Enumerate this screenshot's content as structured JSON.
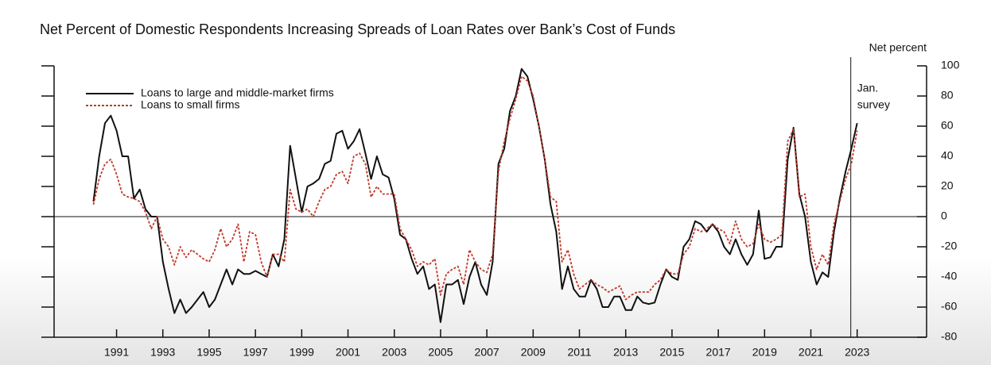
{
  "chart_data": {
    "type": "line",
    "title": "Net Percent of Domestic Respondents Increasing Spreads of Loan Rates over Bank’s Cost of Funds",
    "y_axis_label": "Net percent",
    "annotation": [
      "Jan.",
      "survey"
    ],
    "xlim": [
      1988.3,
      2026.0
    ],
    "xticks": [
      1991,
      1993,
      1995,
      1997,
      1999,
      2001,
      2003,
      2005,
      2007,
      2009,
      2011,
      2013,
      2015,
      2017,
      2019,
      2021,
      2023
    ],
    "ylim": [
      -80,
      100
    ],
    "yticks": [
      -80,
      -60,
      -40,
      -20,
      0,
      20,
      40,
      60,
      80,
      100
    ],
    "legend": "top-left",
    "x": [
      1990.0,
      1990.25,
      1990.5,
      1990.75,
      1991.0,
      1991.25,
      1991.5,
      1991.75,
      1992.0,
      1992.25,
      1992.5,
      1992.75,
      1993.0,
      1993.25,
      1993.5,
      1993.75,
      1994.0,
      1994.25,
      1994.5,
      1994.75,
      1995.0,
      1995.25,
      1995.5,
      1995.75,
      1996.0,
      1996.25,
      1996.5,
      1996.75,
      1997.0,
      1997.25,
      1997.5,
      1997.75,
      1998.0,
      1998.25,
      1998.5,
      1998.75,
      1999.0,
      1999.25,
      1999.5,
      1999.75,
      2000.0,
      2000.25,
      2000.5,
      2000.75,
      2001.0,
      2001.25,
      2001.5,
      2001.75,
      2002.0,
      2002.25,
      2002.5,
      2002.75,
      2003.0,
      2003.25,
      2003.5,
      2003.75,
      2004.0,
      2004.25,
      2004.5,
      2004.75,
      2005.0,
      2005.25,
      2005.5,
      2005.75,
      2006.0,
      2006.25,
      2006.5,
      2006.75,
      2007.0,
      2007.25,
      2007.5,
      2007.75,
      2008.0,
      2008.25,
      2008.5,
      2008.75,
      2009.0,
      2009.25,
      2009.5,
      2009.75,
      2010.0,
      2010.25,
      2010.5,
      2010.75,
      2011.0,
      2011.25,
      2011.5,
      2011.75,
      2012.0,
      2012.25,
      2012.5,
      2012.75,
      2013.0,
      2013.25,
      2013.5,
      2013.75,
      2014.0,
      2014.25,
      2014.5,
      2014.75,
      2015.0,
      2015.25,
      2015.5,
      2015.75,
      2016.0,
      2016.25,
      2016.5,
      2016.75,
      2017.0,
      2017.25,
      2017.5,
      2017.75,
      2018.0,
      2018.25,
      2018.5,
      2018.75,
      2019.0,
      2019.25,
      2019.5,
      2019.75,
      2020.0,
      2020.25,
      2020.5,
      2020.75,
      2021.0,
      2021.25,
      2021.5,
      2021.75,
      2022.0,
      2022.25,
      2022.5,
      2022.75,
      2023.0
    ],
    "series": [
      {
        "name": "Loans to large and middle-market firms",
        "color": "#111111",
        "dash": false,
        "values": [
          10,
          40,
          62,
          67,
          57,
          40,
          40,
          12,
          18,
          5,
          0,
          0,
          -30,
          -48,
          -64,
          -55,
          -64,
          -60,
          -55,
          -50,
          -60,
          -55,
          -45,
          -35,
          -45,
          -35,
          -38,
          -38,
          -36,
          -38,
          -40,
          -25,
          -33,
          -15,
          47,
          25,
          3,
          20,
          22,
          25,
          35,
          37,
          55,
          57,
          45,
          50,
          58,
          42,
          25,
          40,
          28,
          26,
          12,
          -12,
          -15,
          -28,
          -38,
          -33,
          -48,
          -45,
          -70,
          -45,
          -45,
          -42,
          -58,
          -40,
          -30,
          -45,
          -52,
          -30,
          35,
          45,
          70,
          80,
          98,
          93,
          78,
          60,
          38,
          8,
          -10,
          -48,
          -33,
          -48,
          -53,
          -53,
          -42,
          -48,
          -60,
          -60,
          -53,
          -53,
          -62,
          -62,
          -53,
          -57,
          -58,
          -57,
          -45,
          -35,
          -40,
          -42,
          -20,
          -15,
          -3,
          -5,
          -10,
          -5,
          -10,
          -20,
          -25,
          -15,
          -25,
          -32,
          -25,
          4,
          -28,
          -27,
          -20,
          -20,
          38,
          59,
          15,
          0,
          -30,
          -45,
          -37,
          -40,
          -10,
          12,
          30,
          45,
          62
        ]
      },
      {
        "name": "Loans to small firms",
        "color": "#c0392b",
        "dash": true,
        "values": [
          8,
          25,
          35,
          38,
          28,
          15,
          13,
          12,
          10,
          3,
          -8,
          0,
          -15,
          -20,
          -32,
          -20,
          -27,
          -22,
          -25,
          -28,
          -30,
          -22,
          -8,
          -20,
          -15,
          -5,
          -30,
          -10,
          -12,
          -30,
          -40,
          -25,
          -25,
          -30,
          18,
          5,
          3,
          5,
          0,
          10,
          18,
          20,
          28,
          30,
          22,
          40,
          42,
          35,
          13,
          20,
          15,
          15,
          15,
          -8,
          -15,
          -22,
          -33,
          -30,
          -32,
          -28,
          -52,
          -38,
          -35,
          -33,
          -45,
          -22,
          -30,
          -35,
          -37,
          -25,
          30,
          50,
          65,
          78,
          93,
          90,
          80,
          60,
          38,
          13,
          10,
          -30,
          -22,
          -38,
          -48,
          -45,
          -42,
          -45,
          -47,
          -50,
          -48,
          -46,
          -55,
          -52,
          -50,
          -50,
          -50,
          -45,
          -42,
          -35,
          -38,
          -38,
          -25,
          -20,
          -8,
          -10,
          -8,
          -5,
          -8,
          -10,
          -18,
          -3,
          -15,
          -20,
          -18,
          -5,
          -15,
          -17,
          -15,
          -12,
          50,
          58,
          13,
          15,
          -20,
          -35,
          -25,
          -32,
          -5,
          10,
          25,
          35,
          57
        ]
      }
    ]
  }
}
